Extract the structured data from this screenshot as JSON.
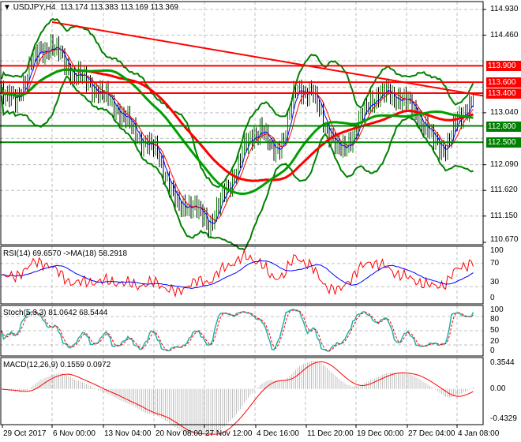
{
  "header": {
    "symbol": "USDJPY,H4",
    "ohlc": "113.174 113.383 113.169 113.369"
  },
  "price_axis": [
    "114.930",
    "114.460",
    "113.040",
    "112.090",
    "111.620",
    "111.150",
    "110.670"
  ],
  "levels": [
    {
      "label": "113.900",
      "value": 113.9,
      "color": "#ff0000"
    },
    {
      "label": "113.600",
      "value": 113.6,
      "color": "#ff0000"
    },
    {
      "label": "113.400",
      "value": 113.4,
      "color": "#ff0000"
    },
    {
      "label": "112.800",
      "value": 112.8,
      "color": "#008000"
    },
    {
      "label": "112.500",
      "value": 112.5,
      "color": "#008000"
    }
  ],
  "rsi": {
    "title": "RSI(14) 69.6570  ->MA(18) 58.2918",
    "axis": [
      "100",
      "70",
      "30",
      "0"
    ]
  },
  "stoch": {
    "title": "Stoch(5,3,3) 81.0642 68.5444",
    "axis": [
      "100",
      "80",
      "50",
      "20",
      "0"
    ]
  },
  "macd": {
    "title": "MACD(12,26,9) 0.1559 0.0972",
    "axis": [
      "0.3544",
      "0.00",
      "-0.4329"
    ]
  },
  "time_axis": [
    "29 Oct 2017",
    "6 Nov 00:00",
    "13 Nov 04:00",
    "20 Nov 08:00",
    "27 Nov 12:00",
    "4 Dec 16:00",
    "11 Dec 20:00",
    "19 Dec 00:00",
    "27 Dec 04:00",
    "4 Jan 08:00"
  ],
  "colors": {
    "bull": "#008000",
    "bear": "#000000",
    "bands": "#008000",
    "ma_red": "#ff0000",
    "ma_green": "#00a000",
    "rsi": "#ff0000",
    "rsi_ma": "#0000ff",
    "stoch_main": "#20b2aa",
    "stoch_signal": "#ff0000"
  }
}
